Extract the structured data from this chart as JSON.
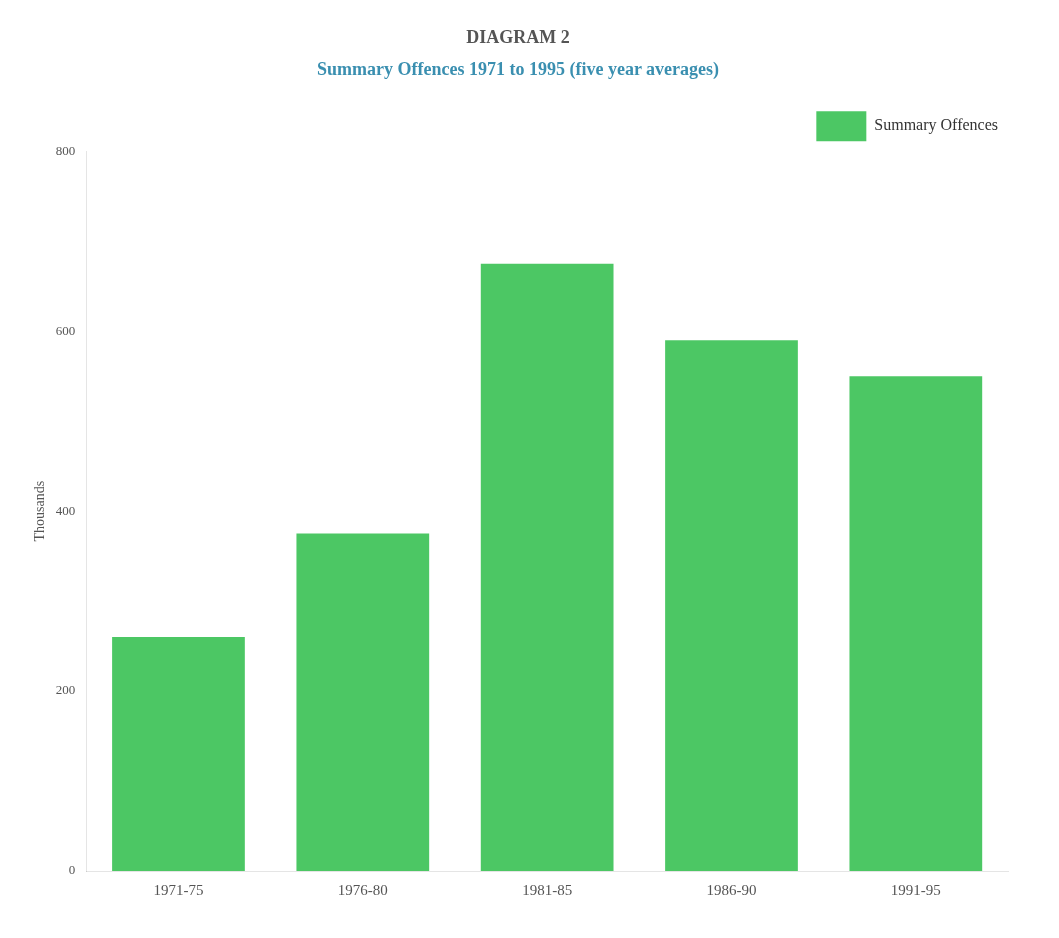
{
  "chart_data": {
    "type": "bar",
    "title": "DIAGRAM 2",
    "subtitle": "Summary Offences 1971 to 1995 (five year averages)",
    "ylabel": "Thousands",
    "categories": [
      "1971-75",
      "1976-80",
      "1981-85",
      "1986-90",
      "1991-95"
    ],
    "series": [
      {
        "name": "Summary Offences",
        "color": "#4cc764",
        "values": [
          260,
          375,
          675,
          590,
          550
        ]
      }
    ],
    "ylim": [
      0,
      800
    ],
    "yticks": [
      0,
      200,
      400,
      600,
      800
    ],
    "legend": "top right"
  }
}
